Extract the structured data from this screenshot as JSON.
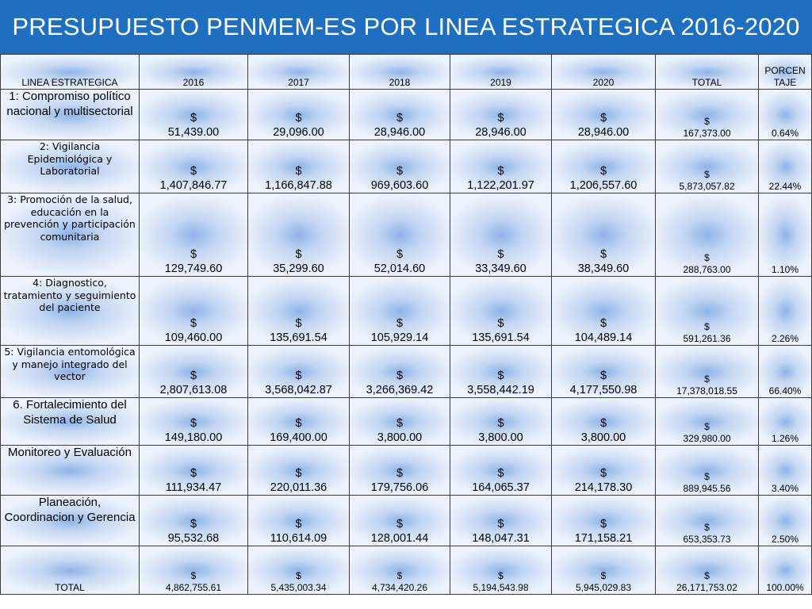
{
  "title": "PRESUPUESTO PENMEM-ES POR LINEA ESTRATEGICA 2016-2020",
  "table": {
    "headers": {
      "linea": "LINEA ESTRATEGICA",
      "y2016": "2016",
      "y2017": "2017",
      "y2018": "2018",
      "y2019": "2019",
      "y2020": "2020",
      "total": "TOTAL",
      "porcentaje_1": "PORCEN",
      "porcentaje_2": "TAJE"
    },
    "currency_symbol": "$",
    "rows": [
      {
        "linea": "1: Compromiso político nacional y multisectorial",
        "y2016": "51,439.00",
        "y2017": "29,096.00",
        "y2018": "28,946.00",
        "y2019": "28,946.00",
        "y2020": "28,946.00",
        "total": "167,373.00",
        "porcentaje": "0.64%"
      },
      {
        "linea": "2: Vigilancia Epidemiológica y Laboratorial",
        "y2016": "1,407,846.77",
        "y2017": "1,166,847.88",
        "y2018": "969,603.60",
        "y2019": "1,122,201.97",
        "y2020": "1,206,557.60",
        "total": "5,873,057.82",
        "porcentaje": "22.44%"
      },
      {
        "linea": "3: Promoción de la salud, educación en la prevención y participación comunitaria",
        "y2016": "129,749.60",
        "y2017": "35,299.60",
        "y2018": "52,014.60",
        "y2019": "33,349.60",
        "y2020": "38,349.60",
        "total": "288,763.00",
        "porcentaje": "1.10%"
      },
      {
        "linea": "4: Diagnostico, tratamiento y seguimiento del paciente",
        "y2016": "109,460.00",
        "y2017": "135,691.54",
        "y2018": "105,929.14",
        "y2019": "135,691.54",
        "y2020": "104,489.14",
        "total": "591,261.36",
        "porcentaje": "2.26%"
      },
      {
        "linea": "5: Vigilancia entomológica y manejo integrado del vector",
        "y2016": "2,807,613.08",
        "y2017": "3,568,042.87",
        "y2018": "3,266,369.42",
        "y2019": "3,558,442.19",
        "y2020": "4,177,550.98",
        "total": "17,378,018.55",
        "porcentaje": "66.40%"
      },
      {
        "linea": "6. Fortalecimiento del Sistema de Salud",
        "y2016": "149,180.00",
        "y2017": "169,400.00",
        "y2018": "3,800.00",
        "y2019": "3,800.00",
        "y2020": "3,800.00",
        "total": "329,980.00",
        "porcentaje": "1.26%"
      },
      {
        "linea": "Monitoreo y Evaluación",
        "y2016": "111,934.47",
        "y2017": "220,011.36",
        "y2018": "179,756.06",
        "y2019": "164,065.37",
        "y2020": "214,178.30",
        "total": "889,945.56",
        "porcentaje": "3.40%"
      },
      {
        "linea": "Planeación, Coordinacion y Gerencia",
        "y2016": "95,532.68",
        "y2017": "110,614.09",
        "y2018": "128,001.44",
        "y2019": "148,047.31",
        "y2020": "171,158.21",
        "total": "653,353.73",
        "porcentaje": "2.50%"
      }
    ],
    "total_row": {
      "linea": "TOTAL",
      "y2016": "4,862,755.61",
      "y2017": "5,435,003.34",
      "y2018": "4,734,420.26",
      "y2019": "5,194,543.98",
      "y2020": "5,945,029.83",
      "total": "26,171,753.02",
      "porcentaje": "100.00%"
    }
  }
}
